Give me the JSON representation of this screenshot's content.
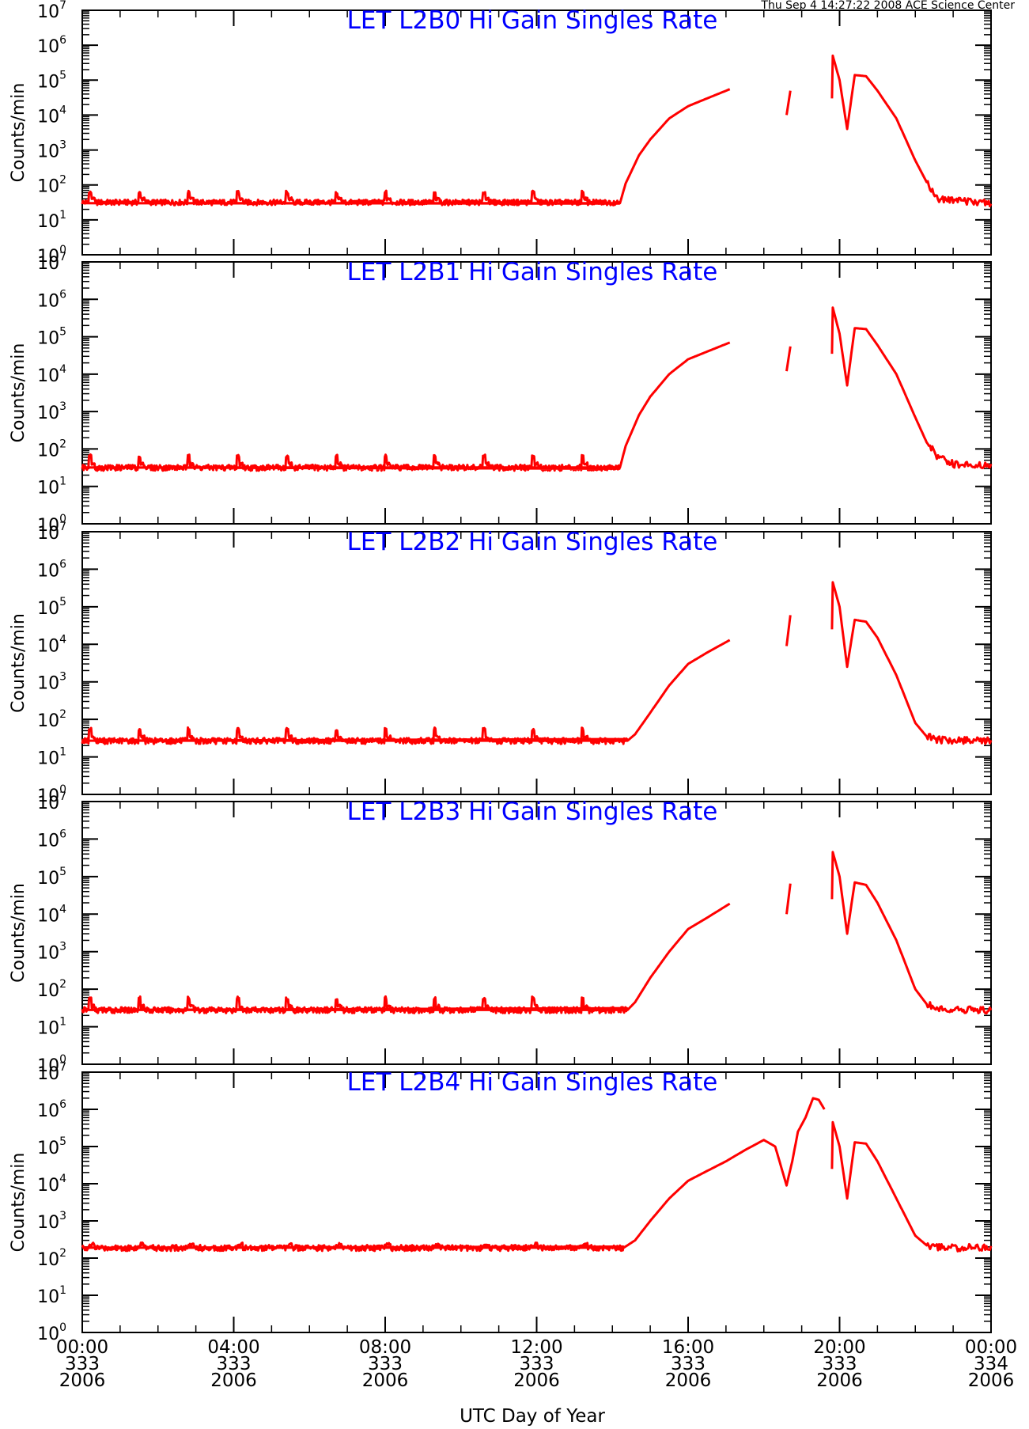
{
  "header": {
    "timestamp": "Thu Sep  4 14:27:22 2008 ACE Science Center"
  },
  "colors": {
    "series": "#ff0000",
    "title": "#0000ff",
    "axes": "#000000"
  },
  "chart_data": [
    {
      "type": "line",
      "title": "LET L2B0 Hi Gain Singles Rate",
      "ylabel": "Counts/min",
      "yscale": "log",
      "ylim": [
        1,
        10000000
      ],
      "xlim": [
        "00:00 333 2006",
        "00:00 334 2006"
      ],
      "baseline": 32,
      "spike_peak": 62,
      "series": [
        {
          "x_hours": [
            0,
            14.2,
            14.35,
            14.7,
            15.0,
            15.5,
            16.0,
            16.5,
            17.1
          ],
          "values": [
            30,
            30,
            110,
            700,
            2000,
            8000,
            18000,
            30000,
            55000
          ]
        },
        {
          "x_hours": [
            18.6,
            18.7
          ],
          "values": [
            10000,
            50000
          ]
        },
        {
          "x_hours": [
            19.8,
            19.82,
            20.0,
            20.2,
            20.4,
            20.7,
            21.0,
            21.5,
            22.0,
            22.3,
            22.6,
            23.0,
            24.0
          ],
          "values": [
            30000,
            500000,
            100000,
            4000,
            140000,
            130000,
            50000,
            8000,
            500,
            120,
            40,
            35,
            30
          ]
        }
      ]
    },
    {
      "type": "line",
      "title": "LET L2B1 Hi Gain Singles Rate",
      "ylabel": "Counts/min",
      "yscale": "log",
      "ylim": [
        1,
        10000000
      ],
      "xlim": [
        "00:00 333 2006",
        "00:00 334 2006"
      ],
      "baseline": 32,
      "spike_peak": 65,
      "series": [
        {
          "x_hours": [
            0,
            14.2,
            14.35,
            14.7,
            15.0,
            15.5,
            16.0,
            16.5,
            17.1
          ],
          "values": [
            32,
            32,
            120,
            800,
            2500,
            10000,
            25000,
            40000,
            70000
          ]
        },
        {
          "x_hours": [
            18.6,
            18.7
          ],
          "values": [
            12000,
            55000
          ]
        },
        {
          "x_hours": [
            19.8,
            19.82,
            20.0,
            20.2,
            20.4,
            20.7,
            21.0,
            21.5,
            22.0,
            22.3,
            22.6,
            23.0,
            24.0
          ],
          "values": [
            35000,
            600000,
            120000,
            5000,
            170000,
            160000,
            60000,
            10000,
            700,
            150,
            60,
            40,
            35
          ]
        }
      ]
    },
    {
      "type": "line",
      "title": "LET L2B2 Hi Gain Singles Rate",
      "ylabel": "Counts/min",
      "yscale": "log",
      "ylim": [
        1,
        10000000
      ],
      "xlim": [
        "00:00 333 2006",
        "00:00 334 2006"
      ],
      "baseline": 27,
      "spike_peak": 55,
      "series": [
        {
          "x_hours": [
            0,
            14.4,
            14.6,
            15.0,
            15.5,
            16.0,
            16.5,
            17.1
          ],
          "values": [
            27,
            27,
            40,
            150,
            800,
            3000,
            6000,
            13000
          ]
        },
        {
          "x_hours": [
            18.6,
            18.7
          ],
          "values": [
            9000,
            60000
          ]
        },
        {
          "x_hours": [
            19.8,
            19.82,
            20.0,
            20.2,
            20.4,
            20.7,
            21.0,
            21.5,
            22.0,
            22.3,
            22.6,
            23.0,
            24.0
          ],
          "values": [
            25000,
            450000,
            100000,
            2500,
            45000,
            40000,
            15000,
            1500,
            80,
            35,
            28,
            27,
            27
          ]
        }
      ]
    },
    {
      "type": "line",
      "title": "LET L2B3 Hi Gain Singles Rate",
      "ylabel": "Counts/min",
      "yscale": "log",
      "ylim": [
        1,
        10000000
      ],
      "xlim": [
        "00:00 333 2006",
        "00:00 334 2006"
      ],
      "baseline": 28,
      "spike_peak": 58,
      "series": [
        {
          "x_hours": [
            0,
            14.4,
            14.6,
            15.0,
            15.5,
            16.0,
            16.5,
            17.1
          ],
          "values": [
            28,
            28,
            45,
            200,
            1000,
            4000,
            8000,
            19000
          ]
        },
        {
          "x_hours": [
            18.6,
            18.7
          ],
          "values": [
            10000,
            65000
          ]
        },
        {
          "x_hours": [
            19.8,
            19.82,
            20.0,
            20.2,
            20.4,
            20.7,
            21.0,
            21.5,
            22.0,
            22.3,
            22.6,
            23.0,
            24.0
          ],
          "values": [
            25000,
            450000,
            100000,
            3000,
            70000,
            60000,
            20000,
            2000,
            100,
            40,
            30,
            28,
            28
          ]
        }
      ]
    },
    {
      "type": "line",
      "title": "LET L2B4 Hi Gain Singles Rate",
      "ylabel": "Counts/min",
      "yscale": "log",
      "ylim": [
        1,
        10000000
      ],
      "xlim": [
        "00:00 333 2006",
        "00:00 334 2006"
      ],
      "baseline": 190,
      "spike_peak": 210,
      "series": [
        {
          "x_hours": [
            0,
            14.3,
            14.6,
            15.0,
            15.5,
            16.0,
            16.5,
            17.0,
            17.5,
            18.0,
            18.3,
            18.6,
            18.75,
            18.9,
            19.1,
            19.3,
            19.45,
            19.6
          ],
          "values": [
            190,
            190,
            300,
            1000,
            4000,
            12000,
            22000,
            40000,
            80000,
            150000,
            100000,
            9000,
            40000,
            250000,
            600000,
            2000000,
            1800000,
            1000000
          ]
        },
        {
          "x_hours": [
            19.8,
            19.82,
            20.0,
            20.2,
            20.4,
            20.7,
            21.0,
            21.5,
            22.0,
            22.3,
            22.6,
            23.0,
            24.0
          ],
          "values": [
            25000,
            450000,
            100000,
            4000,
            130000,
            120000,
            40000,
            4000,
            400,
            220,
            190,
            190,
            190
          ]
        }
      ]
    }
  ],
  "yticks": [
    {
      "base": "10",
      "exp": "0"
    },
    {
      "base": "10",
      "exp": "1"
    },
    {
      "base": "10",
      "exp": "2"
    },
    {
      "base": "10",
      "exp": "3"
    },
    {
      "base": "10",
      "exp": "4"
    },
    {
      "base": "10",
      "exp": "5"
    },
    {
      "base": "10",
      "exp": "6"
    },
    {
      "base": "10",
      "exp": "7"
    }
  ],
  "xticks": [
    {
      "time": "00:00",
      "doy": "333",
      "year": "2006"
    },
    {
      "time": "04:00",
      "doy": "333",
      "year": "2006"
    },
    {
      "time": "08:00",
      "doy": "333",
      "year": "2006"
    },
    {
      "time": "12:00",
      "doy": "333",
      "year": "2006"
    },
    {
      "time": "16:00",
      "doy": "333",
      "year": "2006"
    },
    {
      "time": "20:00",
      "doy": "333",
      "year": "2006"
    },
    {
      "time": "00:00",
      "doy": "334",
      "year": "2006"
    }
  ],
  "xlabel": "UTC Day of Year"
}
